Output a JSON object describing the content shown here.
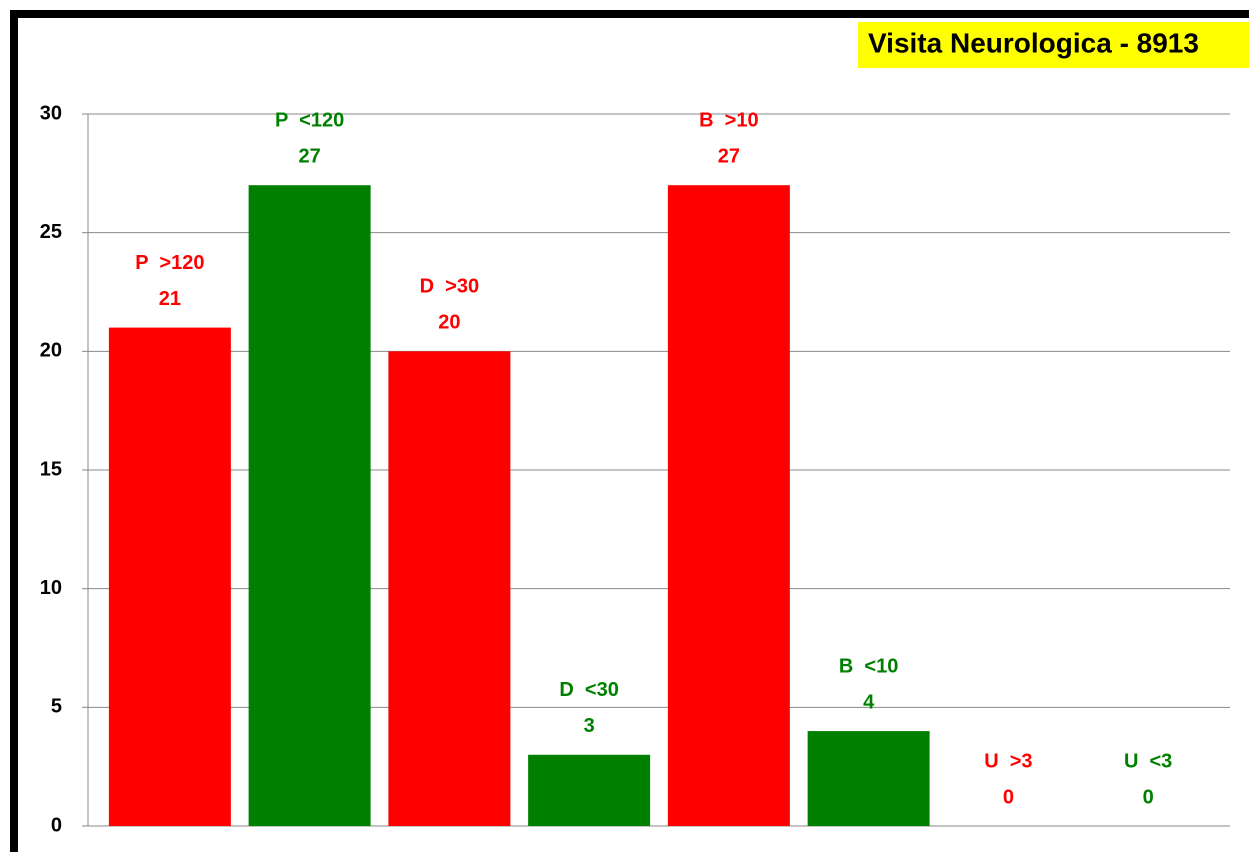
{
  "chart_data": {
    "type": "bar",
    "title": "Visita Neurologica - 8913",
    "categories": [
      "P  >120",
      "P  <120",
      "D  >30",
      "D  <30",
      "B  >10",
      "B  <10",
      "U  >3",
      "U  <3"
    ],
    "values": [
      21,
      27,
      20,
      3,
      27,
      4,
      0,
      0
    ],
    "colors": [
      "#ff0000",
      "#008000",
      "#ff0000",
      "#008000",
      "#ff0000",
      "#008000",
      "#ff0000",
      "#008000"
    ],
    "ylim": [
      0,
      30
    ],
    "yticks": [
      0,
      5,
      10,
      15,
      20,
      25,
      30
    ],
    "grid": true
  }
}
